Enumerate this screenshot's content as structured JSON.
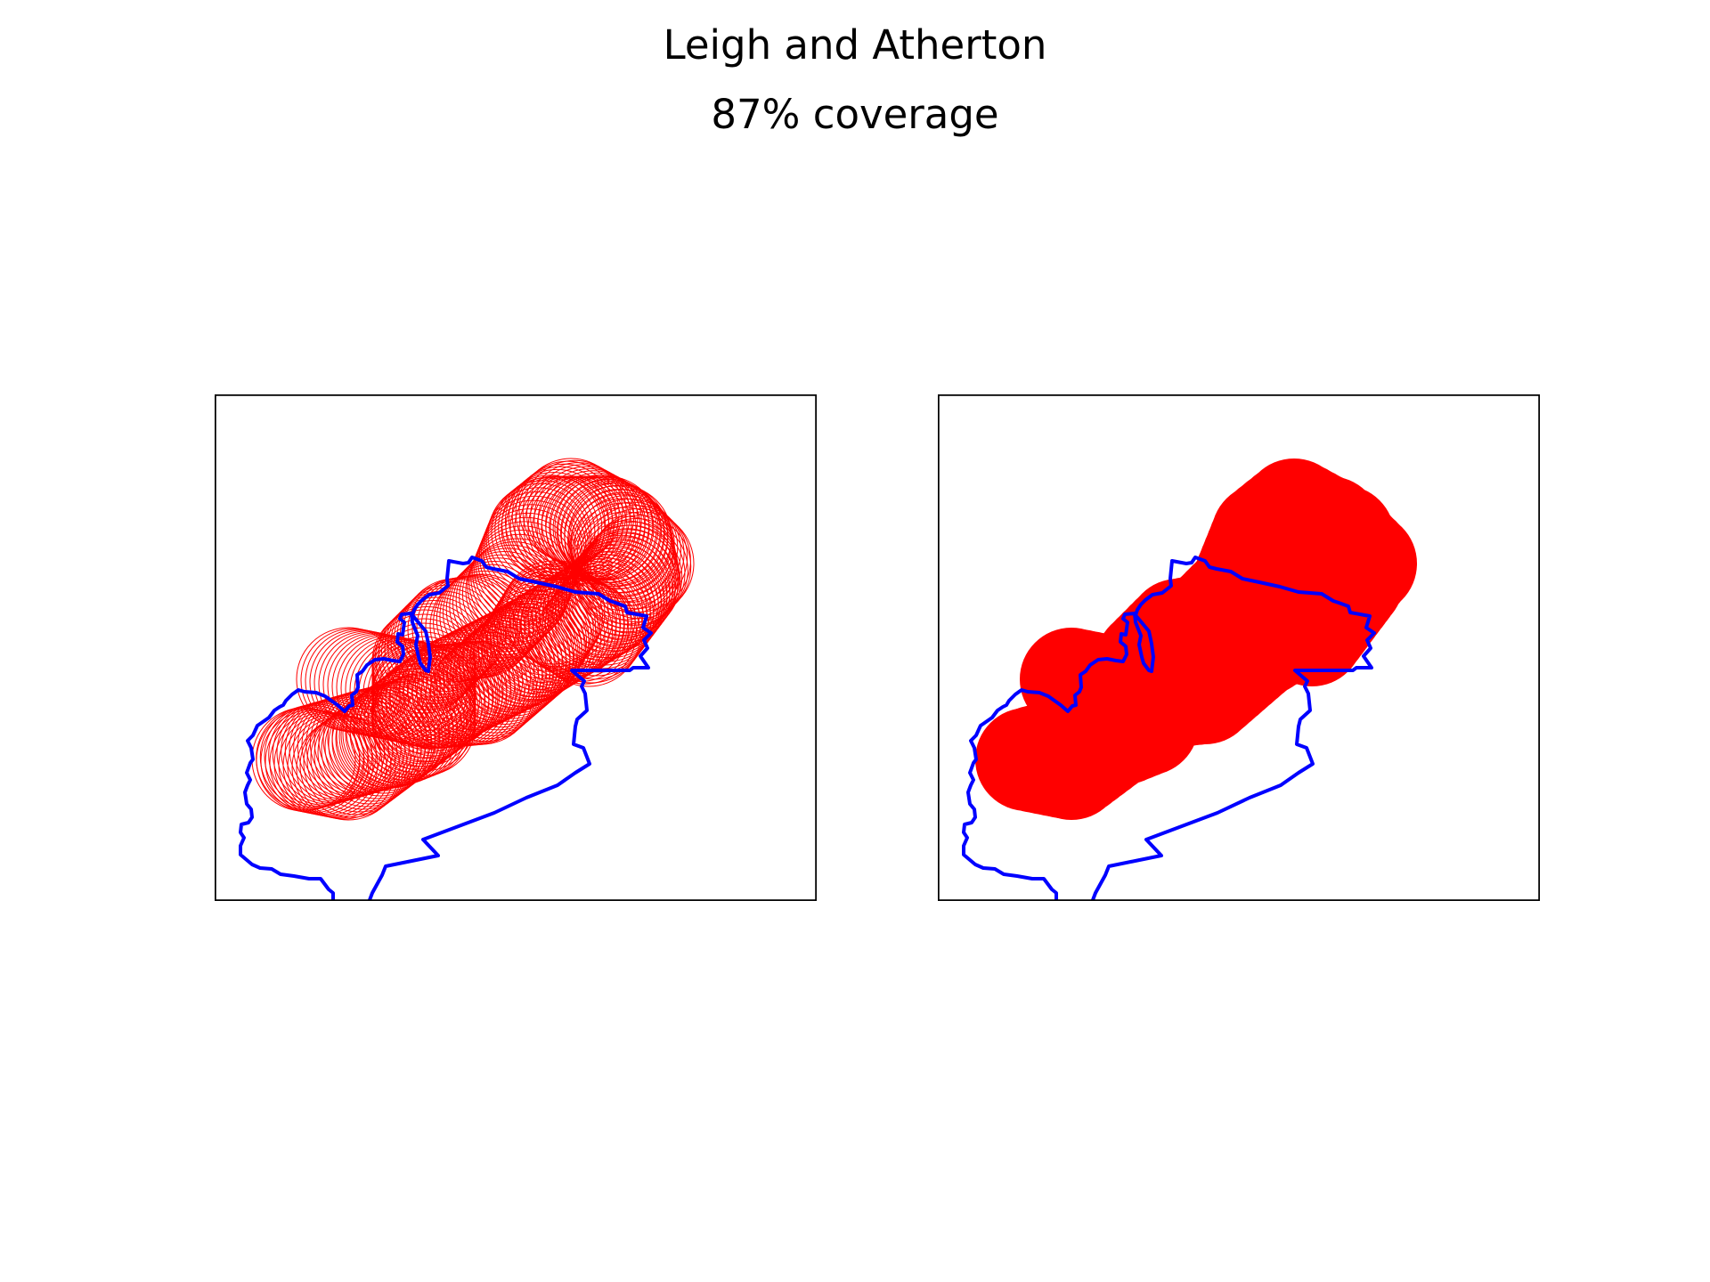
{
  "figure": {
    "title": "Leigh and Atherton",
    "subtitle": "87% coverage"
  },
  "colors": {
    "boundary": "#0000ff",
    "coverage": "#ff0000",
    "frame": "#000000",
    "background": "#ffffff"
  },
  "panels": [
    {
      "name": "coverage-circles-panel",
      "style": "outline"
    },
    {
      "name": "coverage-union-panel",
      "style": "filled"
    }
  ]
}
